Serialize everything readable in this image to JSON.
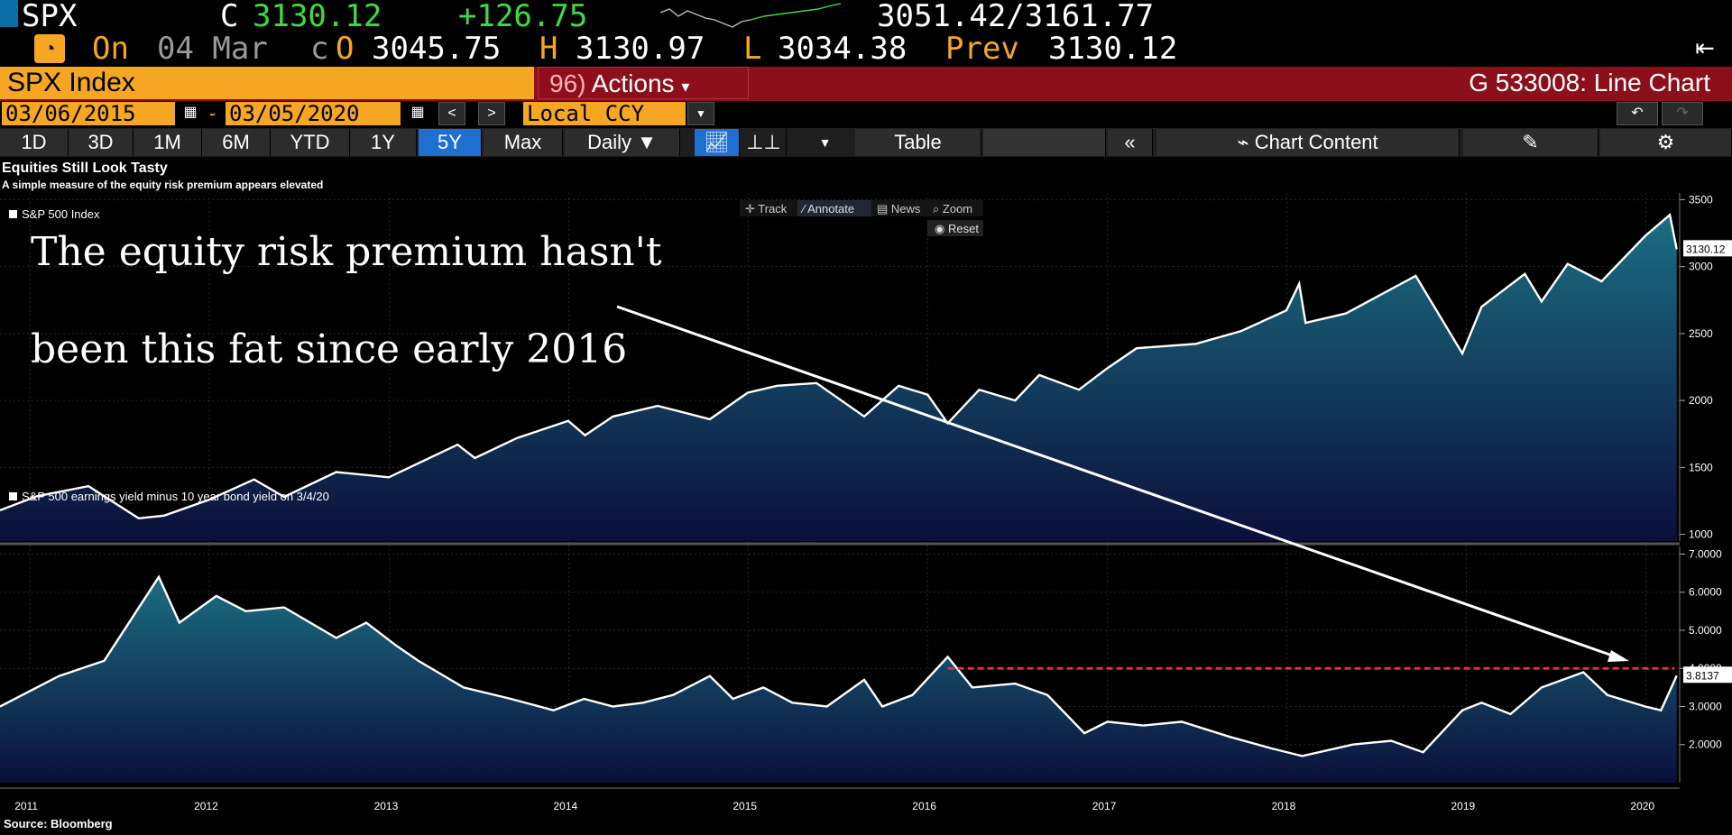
{
  "ticker": {
    "symbol": "SPX",
    "close_label": "C",
    "close": "3130.12",
    "change": "+126.75",
    "range": "3051.42/3161.77",
    "on_label": "On",
    "date": "04 Mar",
    "date_suffix": "c",
    "open_label": "O",
    "open": "3045.75",
    "high_label": "H",
    "high": "3130.97",
    "low_label": "L",
    "low": "3034.38",
    "prev_label": "Prev",
    "prev": "3130.12"
  },
  "security": "SPX Index",
  "actions": {
    "number": "96)",
    "label": "Actions"
  },
  "chart_name": "G 533008: Line Chart",
  "date_range": {
    "start": "03/06/2015",
    "dash": "-",
    "end": "03/05/2020"
  },
  "currency": "Local CCY",
  "periods": [
    {
      "label": "1D"
    },
    {
      "label": "3D"
    },
    {
      "label": "1M"
    },
    {
      "label": "6M"
    },
    {
      "label": "YTD"
    },
    {
      "label": "1Y"
    },
    {
      "label": "5Y"
    },
    {
      "label": "Max"
    }
  ],
  "frequency": "Daily",
  "table_label": "Table",
  "chart_content_label": "Chart Content",
  "toolbar_overlay": {
    "track": "Track",
    "annotate": "Annotate",
    "news": "News",
    "zoom": "Zoom",
    "reset": "Reset"
  },
  "chart_title": "Equities Still Look Tasty",
  "chart_subtitle": "A simple measure of the equity risk premium appears elevated",
  "annotation": {
    "line1": "The equity risk premium hasn't",
    "line2": "been this fat since early 2016"
  },
  "source": "Source: Bloomberg",
  "colors": {
    "accent": "#f5a623",
    "bar_red": "#8e0f1c",
    "up_green": "#3ddc3d",
    "active_tab": "#1f6fd1",
    "area_top": "#1b6e82",
    "area_bottom": "#0b0f3a",
    "threshold": "#e0303a"
  },
  "chart_data": [
    {
      "type": "area",
      "series": [
        {
          "name": "S&P 500 Index",
          "x": [
            "2010-11-01",
            "2011-01-15",
            "2011-04-30",
            "2011-08-10",
            "2011-10-01",
            "2011-12-31",
            "2012-04-01",
            "2012-06-01",
            "2012-09-15",
            "2012-12-31",
            "2013-05-20",
            "2013-06-24",
            "2013-09-18",
            "2013-12-31",
            "2014-02-03",
            "2014-04-01",
            "2014-07-01",
            "2014-10-15",
            "2014-12-31",
            "2015-03-01",
            "2015-05-20",
            "2015-08-25",
            "2015-11-03",
            "2016-01-01",
            "2016-02-11",
            "2016-04-15",
            "2016-06-27",
            "2016-08-15",
            "2016-11-04",
            "2016-12-31",
            "2017-03-01",
            "2017-06-30",
            "2017-09-30",
            "2017-12-31",
            "2018-01-26",
            "2018-02-08",
            "2018-05-01",
            "2018-09-20",
            "2018-12-24",
            "2019-02-01",
            "2019-04-30",
            "2019-06-03",
            "2019-07-26",
            "2019-10-03",
            "2019-12-31",
            "2020-02-19",
            "2020-03-04"
          ],
          "values": [
            1180,
            1285,
            1360,
            1120,
            1140,
            1258,
            1410,
            1280,
            1465,
            1426,
            1670,
            1570,
            1720,
            1848,
            1740,
            1880,
            1960,
            1860,
            2058,
            2110,
            2130,
            1880,
            2110,
            2043,
            1830,
            2080,
            2000,
            2190,
            2080,
            2239,
            2390,
            2423,
            2519,
            2673,
            2872,
            2580,
            2650,
            2930,
            2351,
            2700,
            2945,
            2740,
            3020,
            2890,
            3230,
            3386,
            3130
          ]
        }
      ],
      "xlabels": [
        "2011",
        "2012",
        "2013",
        "2014",
        "2015",
        "2016",
        "2017",
        "2018",
        "2019",
        "2020"
      ],
      "ylim": [
        950,
        3550
      ],
      "yticks": [
        "1000",
        "1500",
        "2000",
        "2500",
        "3000",
        "3500"
      ],
      "last_value_label": "3130.12",
      "legend": "S&P 500 Index"
    },
    {
      "type": "area",
      "series": [
        {
          "name": "S&P 500 earnings yield minus 10 year bond yield on 3/4/20",
          "x": [
            "2010-11-01",
            "2011-03-01",
            "2011-06-01",
            "2011-09-20",
            "2011-11-01",
            "2012-01-15",
            "2012-03-15",
            "2012-06-01",
            "2012-09-15",
            "2012-11-15",
            "2013-01-15",
            "2013-03-01",
            "2013-06-01",
            "2013-09-05",
            "2013-12-01",
            "2014-02-01",
            "2014-04-01",
            "2014-06-01",
            "2014-08-01",
            "2014-10-15",
            "2014-12-01",
            "2015-02-01",
            "2015-04-01",
            "2015-06-10",
            "2015-08-25",
            "2015-10-01",
            "2015-12-01",
            "2016-02-11",
            "2016-04-01",
            "2016-06-27",
            "2016-09-01",
            "2016-11-15",
            "2017-01-01",
            "2017-03-15",
            "2017-06-01",
            "2017-09-08",
            "2017-12-01",
            "2018-02-01",
            "2018-05-15",
            "2018-08-01",
            "2018-10-05",
            "2018-12-24",
            "2019-02-01",
            "2019-04-01",
            "2019-06-03",
            "2019-08-27",
            "2019-10-15",
            "2019-12-31",
            "2020-02-01",
            "2020-03-04"
          ],
          "values": [
            3.0,
            3.8,
            4.2,
            6.4,
            5.2,
            5.9,
            5.5,
            5.6,
            4.8,
            5.2,
            4.6,
            4.2,
            3.5,
            3.2,
            2.9,
            3.2,
            3.0,
            3.1,
            3.3,
            3.8,
            3.2,
            3.5,
            3.1,
            3.0,
            3.7,
            3.0,
            3.3,
            4.3,
            3.5,
            3.6,
            3.3,
            2.3,
            2.6,
            2.5,
            2.6,
            2.2,
            1.9,
            1.7,
            2.0,
            2.1,
            1.8,
            2.9,
            3.1,
            2.8,
            3.5,
            3.9,
            3.3,
            3.0,
            2.9,
            3.81
          ]
        }
      ],
      "ylim": [
        1.0,
        7.2
      ],
      "yticks": [
        "2.0000",
        "3.0000",
        "4.0000",
        "5.0000",
        "6.0000",
        "7.0000"
      ],
      "threshold": 4.0,
      "last_value_label": "3.8137",
      "legend": "S&P 500 earnings yield minus 10 year bond yield on 3/4/20"
    }
  ]
}
